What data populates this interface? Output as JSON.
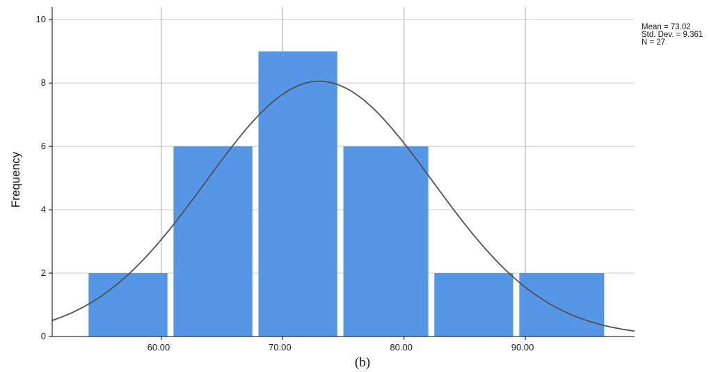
{
  "chart_data": {
    "type": "bar",
    "subtype": "histogram",
    "ylabel": "Frequency",
    "xlabel": "",
    "bins": [
      {
        "start": 54,
        "end": 60.5,
        "count": 2
      },
      {
        "start": 61,
        "end": 67.5,
        "count": 6
      },
      {
        "start": 68,
        "end": 74.5,
        "count": 9
      },
      {
        "start": 75,
        "end": 82,
        "count": 6
      },
      {
        "start": 82.5,
        "end": 89,
        "count": 2
      },
      {
        "start": 89.5,
        "end": 96.5,
        "count": 2
      }
    ],
    "xlim": [
      51,
      99
    ],
    "ylim": [
      0,
      10.4
    ],
    "x_ticks": [
      "60.00",
      "70.00",
      "80.00",
      "90.00"
    ],
    "x_tick_values": [
      60,
      70,
      80,
      90
    ],
    "y_ticks": [
      "0",
      "2",
      "4",
      "6",
      "8",
      "10"
    ],
    "y_tick_values": [
      0,
      2,
      4,
      6,
      8,
      10
    ],
    "grid": true,
    "normal_curve": {
      "mean": 73.02,
      "std_dev": 9.361,
      "n": 27,
      "bin_width": 7
    },
    "stats": {
      "mean": "Mean = 73.02",
      "std_dev": "Std. Dev. = 9.361",
      "n": "N = 27"
    },
    "caption": "(b)",
    "colors": {
      "bar": "#5596e6",
      "curve": "#505050",
      "grid": "#d0d0d0",
      "axis": "#000000"
    }
  }
}
